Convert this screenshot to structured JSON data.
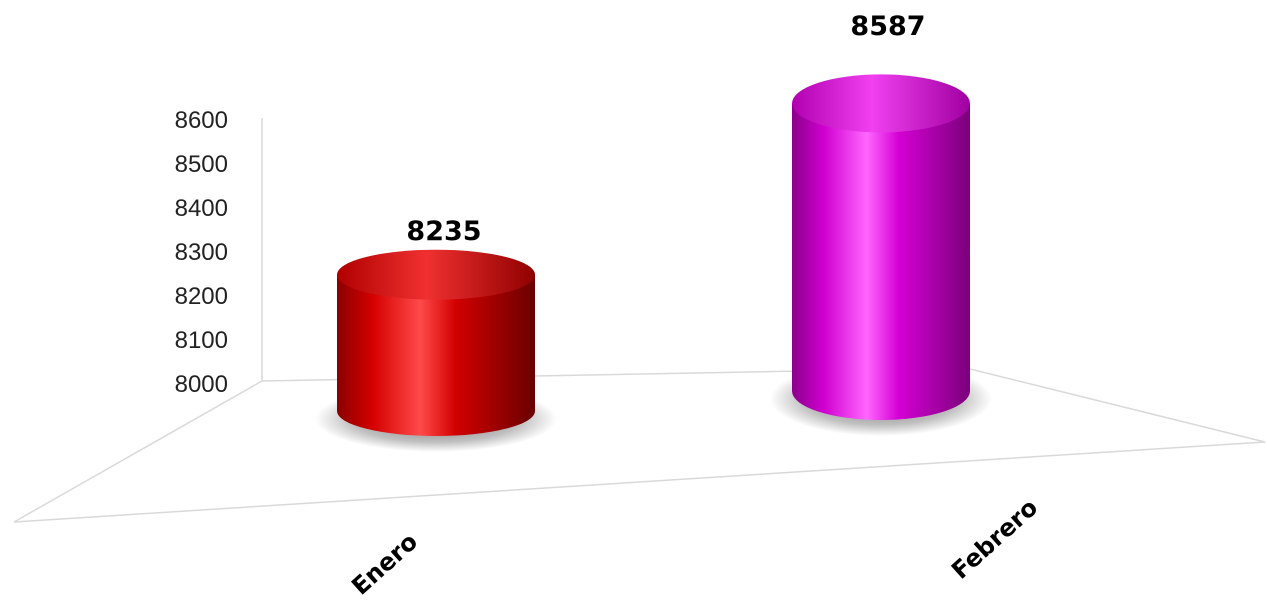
{
  "chart_data": {
    "type": "bar",
    "bar_shape": "cylinder-3d",
    "categories": [
      "Enero",
      "Febrero"
    ],
    "values": [
      8235,
      8587
    ],
    "colors": [
      "#cc0000",
      "#cc00cc"
    ],
    "ylim": [
      8000,
      8600
    ],
    "yticks": [
      "8000",
      "8100",
      "8200",
      "8300",
      "8400",
      "8500",
      "8600"
    ],
    "data_labels": [
      "8235",
      "8587"
    ],
    "grid": false,
    "legend": "none"
  }
}
